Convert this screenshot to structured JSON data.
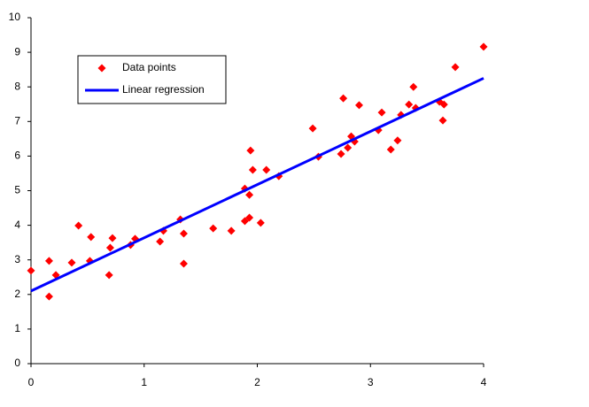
{
  "chart_data": {
    "type": "scatter",
    "series": [
      {
        "name": "Data points",
        "type": "scatter",
        "color": "#ff0000",
        "x": [
          0,
          0.16,
          0.16,
          0.22,
          0.36,
          0.42,
          0.52,
          0.53,
          0.69,
          0.7,
          0.72,
          0.88,
          0.92,
          1.14,
          1.17,
          1.32,
          1.35,
          1.35,
          1.61,
          1.77,
          1.89,
          1.89,
          1.93,
          1.93,
          1.94,
          1.96,
          2.03,
          2.08,
          2.19,
          2.49,
          2.54,
          2.76,
          2.74,
          2.8,
          2.83,
          2.86,
          2.9,
          3.07,
          3.1,
          3.18,
          3.24,
          3.27,
          3.34,
          3.38,
          3.4,
          3.61,
          3.64,
          3.65,
          3.75,
          4.0
        ],
        "values": [
          2.69,
          1.94,
          2.97,
          2.56,
          2.92,
          3.99,
          2.97,
          3.66,
          2.56,
          3.35,
          3.63,
          3.43,
          3.61,
          3.53,
          3.84,
          4.17,
          3.76,
          2.89,
          3.91,
          3.84,
          5.06,
          4.12,
          4.22,
          4.88,
          6.16,
          5.6,
          4.07,
          5.6,
          5.42,
          6.8,
          5.98,
          7.67,
          6.06,
          6.24,
          6.57,
          6.42,
          7.47,
          6.75,
          7.26,
          6.19,
          6.45,
          7.19,
          7.49,
          8.0,
          7.39,
          7.57,
          7.03,
          7.49,
          8.57,
          9.16
        ]
      },
      {
        "name": "Linear regression",
        "type": "line",
        "color": "#0000ff",
        "x": [
          0,
          4
        ],
        "values": [
          2.1,
          8.25
        ]
      }
    ],
    "xlim": [
      0,
      4
    ],
    "xticks": [
      0,
      1,
      2,
      3,
      4
    ],
    "ylim": [
      0,
      10
    ],
    "yticks": [
      0,
      1,
      2,
      3,
      4,
      5,
      6,
      7,
      8,
      9,
      10
    ],
    "grid": false,
    "legend": "upper left"
  }
}
